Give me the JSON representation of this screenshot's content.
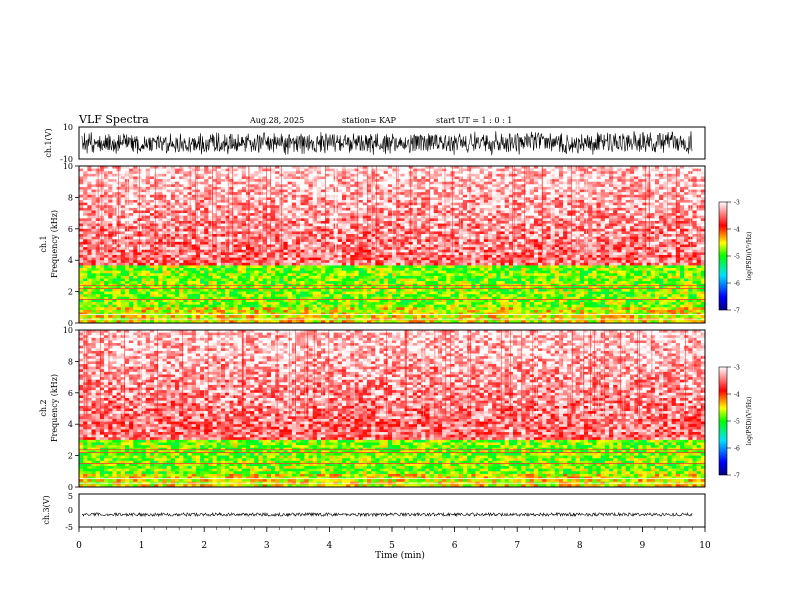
{
  "header": {
    "title": "VLF Spectra",
    "date": "Aug.28, 2025",
    "station": "station= KAP",
    "start": "start  UT =   1 : 0  : 1"
  },
  "chart_data": [
    {
      "type": "line",
      "panel": "ch1-waveform",
      "ylabel": "ch.1(V)",
      "ylim": [
        -10,
        10
      ],
      "yticks": [
        "10",
        "-10"
      ],
      "xlim": [
        0,
        10
      ],
      "description_values": {
        "amplitude_range": [
          -10,
          10
        ]
      }
    },
    {
      "type": "heatmap",
      "panel": "ch1-spectrogram",
      "ylabel": "ch.1",
      "ylabel2": "Frequency (kHz)",
      "ylim": [
        0,
        10
      ],
      "yticks": [
        "0",
        "2",
        "4",
        "6",
        "8",
        "10"
      ],
      "xlim": [
        0,
        10
      ],
      "colorbar": {
        "ticks": [
          "-3",
          "-4",
          "-5",
          "-6",
          "-7"
        ],
        "label": "log(PSD)(V²/Hz)",
        "range": [
          -7,
          -3
        ]
      },
      "bands": [
        {
          "from_khz": 0,
          "to_khz": 1.0,
          "level": -4.5
        },
        {
          "from_khz": 1.0,
          "to_khz": 3.6,
          "level": -4.8
        },
        {
          "from_khz": 3.6,
          "to_khz": 10,
          "level": -3.5
        }
      ]
    },
    {
      "type": "heatmap",
      "panel": "ch2-spectrogram",
      "ylabel": "ch.2",
      "ylabel2": "Frequency (kHz)",
      "ylim": [
        0,
        10
      ],
      "yticks": [
        "0",
        "2",
        "4",
        "6",
        "8",
        "10"
      ],
      "xlim": [
        0,
        10
      ],
      "colorbar": {
        "ticks": [
          "-3",
          "-4",
          "-5",
          "-6",
          "-7"
        ],
        "label": "log(PSD)(V²/Hz)",
        "range": [
          -7,
          -3
        ]
      },
      "bands": [
        {
          "from_khz": 0,
          "to_khz": 0.8,
          "level": -4.5
        },
        {
          "from_khz": 0.8,
          "to_khz": 3.0,
          "level": -4.8
        },
        {
          "from_khz": 3.0,
          "to_khz": 10,
          "level": -3.5
        }
      ]
    },
    {
      "type": "line",
      "panel": "ch3-waveform",
      "ylabel": "ch.3(V)",
      "ylim": [
        -5,
        5
      ],
      "yticks": [
        "5",
        "0",
        "-5"
      ],
      "xlim": [
        0,
        10
      ],
      "xlabel": "Time (min)",
      "xticks": [
        "0",
        "1",
        "2",
        "3",
        "4",
        "5",
        "6",
        "7",
        "8",
        "9",
        "10"
      ],
      "description_values": {
        "amplitude_range": [
          -0.6,
          0.6
        ]
      }
    }
  ]
}
